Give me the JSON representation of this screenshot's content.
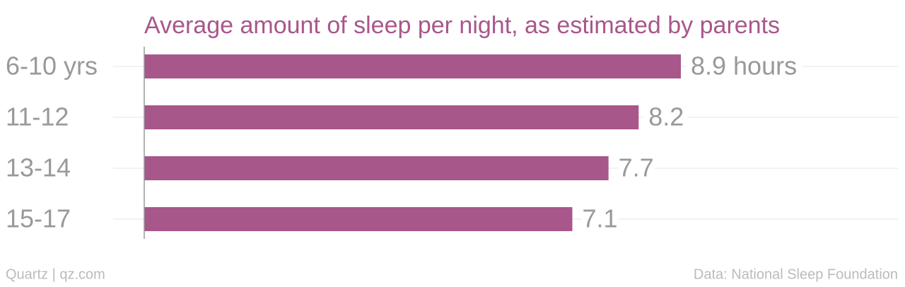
{
  "chart_data": {
    "type": "bar",
    "orientation": "horizontal",
    "title": "Average amount of sleep per night, as estimated by parents",
    "categories": [
      "6-10 yrs",
      "11-12",
      "13-14",
      "15-17"
    ],
    "values": [
      8.9,
      8.2,
      7.7,
      7.1
    ],
    "value_labels": [
      "8.9 hours",
      "8.2",
      "7.7",
      "7.1"
    ],
    "color": "#a8578a",
    "xlim": [
      0,
      12.5
    ],
    "credit": "Quartz | qz.com",
    "source": "Data: National Sleep Foundation"
  }
}
